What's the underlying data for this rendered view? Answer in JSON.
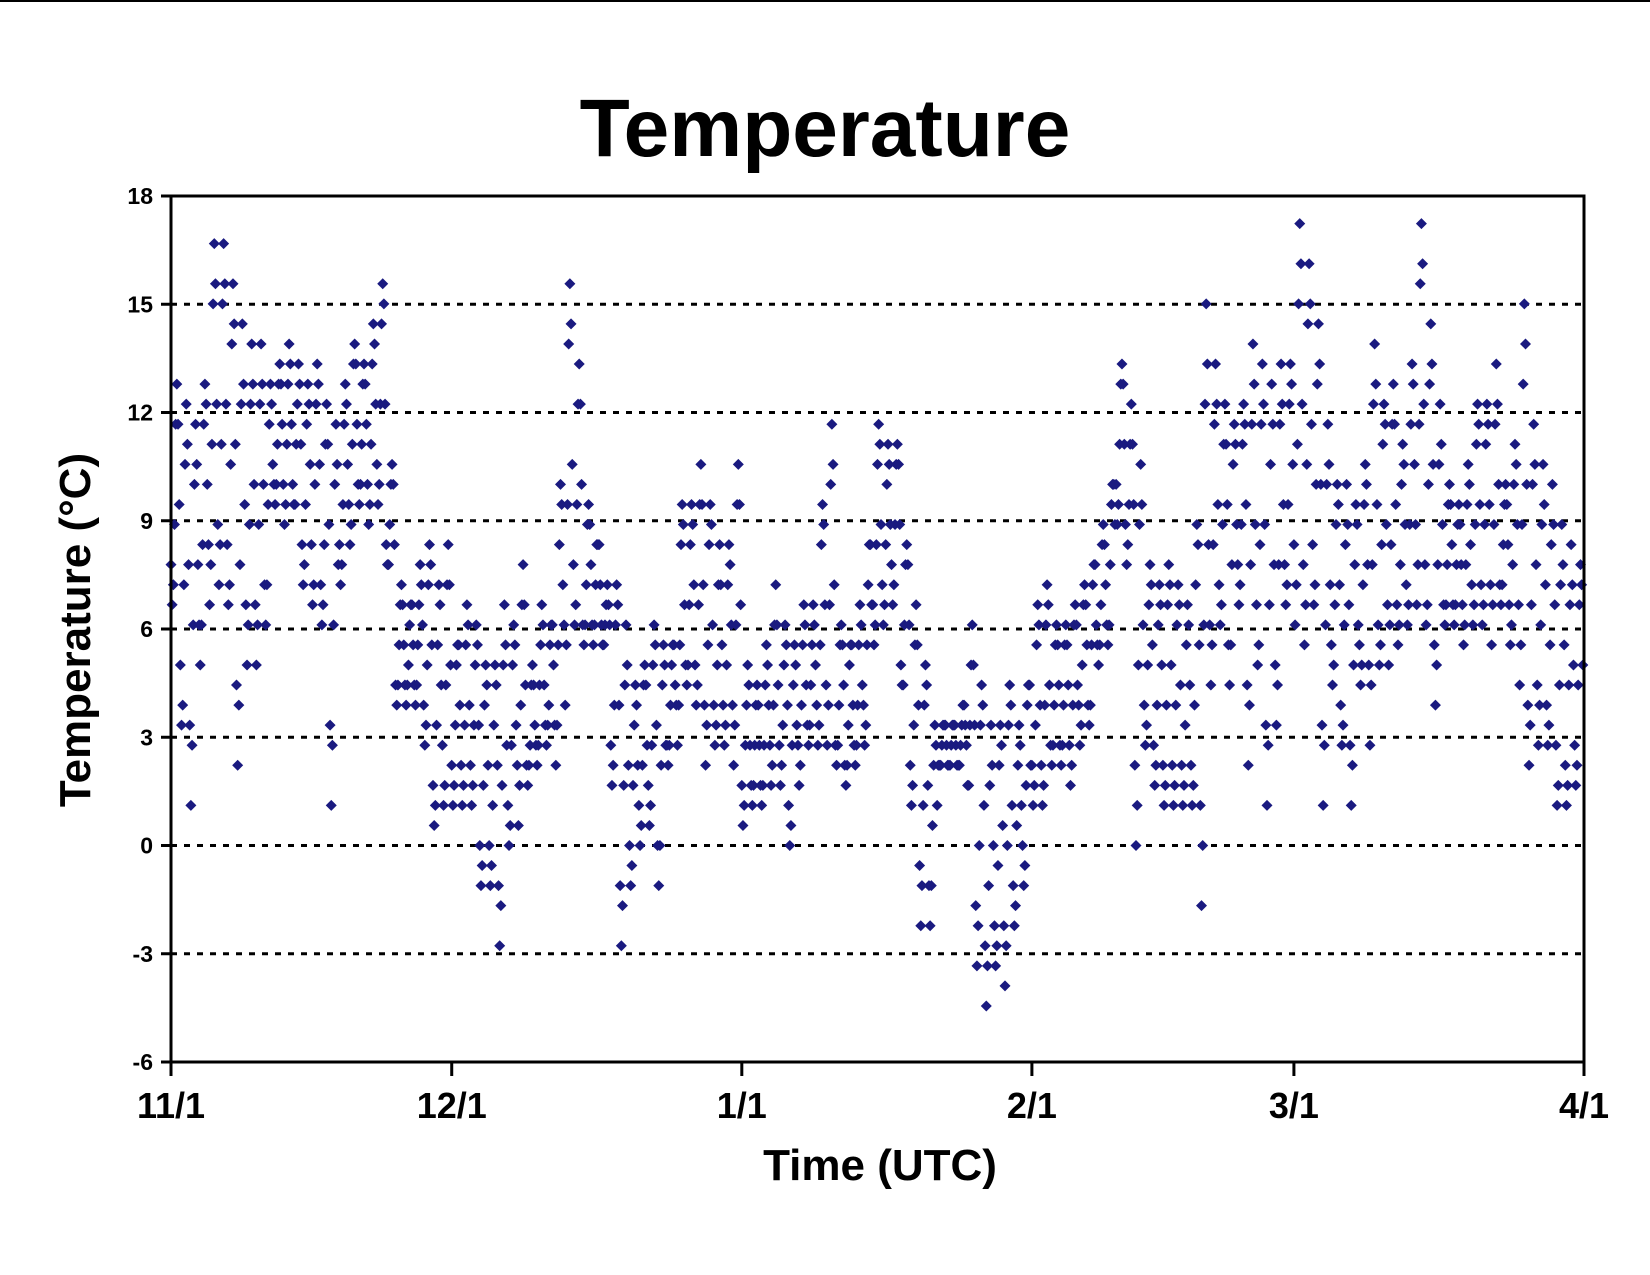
{
  "chart_data": {
    "type": "scatter",
    "title": "Temperature",
    "xlabel": "Time (UTC)",
    "ylabel": "Temperature (°C)",
    "x_ticks": [
      "11/1",
      "12/1",
      "1/1",
      "2/1",
      "3/1",
      "4/1"
    ],
    "x_tick_days": [
      0,
      30,
      61,
      92,
      120,
      151
    ],
    "y_ticks": [
      "18",
      "15",
      "12",
      "9",
      "6",
      "3",
      "0",
      "-3",
      "-6"
    ],
    "ylim": [
      -6,
      18
    ],
    "xlim": [
      "11/1",
      "4/1"
    ],
    "grid": "horizontal dotted",
    "marker": "diamond",
    "color": "#1a1a80",
    "observation_interval_hours": 3,
    "series": [
      {
        "description": "3-hourly air temperature observations, approximate daily range (date, min °C, max °C)",
        "daily_range": [
          [
            "11/1",
            6.7,
            12.8
          ],
          [
            "11/2",
            3.3,
            12.2
          ],
          [
            "11/3",
            1.1,
            11.7
          ],
          [
            "11/4",
            5.0,
            12.2
          ],
          [
            "11/5",
            6.7,
            16.7
          ],
          [
            "11/6",
            7.2,
            16.7
          ],
          [
            "11/7",
            6.7,
            16.1
          ],
          [
            "11/8",
            2.2,
            14.4
          ],
          [
            "11/9",
            5.0,
            13.9
          ],
          [
            "11/10",
            5.0,
            13.9
          ],
          [
            "11/11",
            6.1,
            12.8
          ],
          [
            "11/12",
            9.4,
            13.3
          ],
          [
            "11/13",
            8.9,
            13.9
          ],
          [
            "11/14",
            9.4,
            13.3
          ],
          [
            "11/15",
            7.2,
            12.8
          ],
          [
            "11/16",
            6.7,
            13.9
          ],
          [
            "11/17",
            6.1,
            12.2
          ],
          [
            "11/18",
            1.1,
            11.7
          ],
          [
            "11/19",
            7.2,
            12.2
          ],
          [
            "11/20",
            8.3,
            14.4
          ],
          [
            "11/21",
            9.4,
            13.3
          ],
          [
            "11/22",
            8.9,
            13.9
          ],
          [
            "11/23",
            9.4,
            16.7
          ],
          [
            "11/24",
            7.8,
            11.1
          ],
          [
            "11/25",
            3.9,
            7.2
          ],
          [
            "11/26",
            3.9,
            6.7
          ],
          [
            "11/27",
            3.9,
            7.2
          ],
          [
            "11/28",
            2.8,
            8.9
          ],
          [
            "11/29",
            0.6,
            6.7
          ],
          [
            "11/30",
            1.1,
            8.9
          ],
          [
            "12/1",
            1.1,
            5.6
          ],
          [
            "12/2",
            1.1,
            6.7
          ],
          [
            "12/3",
            1.1,
            6.1
          ],
          [
            "12/4",
            -1.1,
            5.0
          ],
          [
            "12/5",
            -1.1,
            4.4
          ],
          [
            "12/6",
            -2.8,
            6.7
          ],
          [
            "12/7",
            0.0,
            5.6
          ],
          [
            "12/8",
            0.6,
            8.3
          ],
          [
            "12/9",
            1.7,
            4.4
          ],
          [
            "12/10",
            2.2,
            6.7
          ],
          [
            "12/11",
            2.8,
            5.6
          ],
          [
            "12/12",
            2.2,
            8.9
          ],
          [
            "12/13",
            3.9,
            16.1
          ],
          [
            "12/14",
            6.1,
            14.4
          ],
          [
            "12/15",
            5.6,
            9.4
          ],
          [
            "12/16",
            5.6,
            8.9
          ],
          [
            "12/17",
            5.6,
            7.2
          ],
          [
            "12/18",
            1.7,
            7.2
          ],
          [
            "12/19",
            -2.8,
            6.7
          ],
          [
            "12/20",
            -1.1,
            4.4
          ],
          [
            "12/21",
            0.0,
            5.0
          ],
          [
            "12/22",
            0.6,
            6.1
          ],
          [
            "12/23",
            -1.1,
            5.6
          ],
          [
            "12/24",
            2.2,
            5.0
          ],
          [
            "12/25",
            2.8,
            9.4
          ],
          [
            "12/26",
            4.4,
            8.9
          ],
          [
            "12/27",
            3.9,
            10.6
          ],
          [
            "12/28",
            2.2,
            10.0
          ],
          [
            "12/29",
            2.8,
            8.3
          ],
          [
            "12/30",
            2.8,
            7.2
          ],
          [
            "12/31",
            2.2,
            12.2
          ],
          [
            "1/1",
            0.6,
            5.0
          ],
          [
            "1/2",
            1.1,
            4.4
          ],
          [
            "1/3",
            1.1,
            5.0
          ],
          [
            "1/4",
            1.7,
            7.2
          ],
          [
            "1/5",
            1.7,
            6.1
          ],
          [
            "1/6",
            0.0,
            5.6
          ],
          [
            "1/7",
            1.7,
            6.7
          ],
          [
            "1/8",
            2.8,
            6.1
          ],
          [
            "1/9",
            2.8,
            8.9
          ],
          [
            "1/10",
            2.8,
            12.8
          ],
          [
            "1/11",
            2.2,
            6.1
          ],
          [
            "1/12",
            1.7,
            5.6
          ],
          [
            "1/13",
            2.2,
            6.1
          ],
          [
            "1/14",
            2.8,
            7.8
          ],
          [
            "1/15",
            5.6,
            11.7
          ],
          [
            "1/16",
            6.1,
            11.1
          ],
          [
            "1/17",
            6.7,
            11.7
          ],
          [
            "1/18",
            4.4,
            8.9
          ],
          [
            "1/19",
            1.1,
            6.7
          ],
          [
            "1/20",
            -2.2,
            5.6
          ],
          [
            "1/21",
            -2.2,
            3.3
          ],
          [
            "1/22",
            2.2,
            3.3
          ],
          [
            "1/23",
            2.2,
            3.3
          ],
          [
            "1/24",
            2.2,
            3.3
          ],
          [
            "1/25",
            1.7,
            6.1
          ],
          [
            "1/26",
            -3.3,
            5.0
          ],
          [
            "1/27",
            -4.4,
            3.3
          ],
          [
            "1/28",
            -3.3,
            3.3
          ],
          [
            "1/29",
            -3.9,
            5.0
          ],
          [
            "1/30",
            -2.2,
            3.3
          ],
          [
            "1/31",
            -1.1,
            4.4
          ],
          [
            "2/1",
            1.1,
            6.1
          ],
          [
            "2/2",
            1.1,
            7.8
          ],
          [
            "2/3",
            2.2,
            6.1
          ],
          [
            "2/4",
            2.2,
            6.1
          ],
          [
            "2/5",
            1.7,
            6.7
          ],
          [
            "2/6",
            2.8,
            7.2
          ],
          [
            "2/7",
            3.3,
            7.8
          ],
          [
            "2/8",
            5.0,
            8.9
          ],
          [
            "2/9",
            5.6,
            9.4
          ],
          [
            "2/10",
            8.9,
            13.9
          ],
          [
            "2/11",
            8.3,
            12.2
          ],
          [
            "2/12",
            0.0,
            11.1
          ],
          [
            "2/13",
            2.8,
            7.8
          ],
          [
            "2/14",
            1.7,
            7.2
          ],
          [
            "2/15",
            1.1,
            7.8
          ],
          [
            "2/16",
            1.1,
            7.2
          ],
          [
            "2/17",
            1.1,
            6.7
          ],
          [
            "2/18",
            1.1,
            7.2
          ],
          [
            "2/19",
            -2.2,
            15.6
          ],
          [
            "2/20",
            4.4,
            13.3
          ],
          [
            "2/21",
            6.1,
            12.2
          ],
          [
            "2/22",
            4.4,
            11.7
          ],
          [
            "2/23",
            6.7,
            12.2
          ],
          [
            "2/24",
            2.2,
            13.9
          ],
          [
            "2/25",
            5.0,
            13.3
          ],
          [
            "2/26",
            1.1,
            12.8
          ],
          [
            "2/27",
            3.3,
            13.3
          ],
          [
            "2/28",
            6.7,
            12.8
          ],
          [
            "3/1",
            6.1,
            17.2
          ],
          [
            "3/2",
            5.6,
            16.7
          ],
          [
            "3/3",
            6.7,
            15.0
          ],
          [
            "3/4",
            1.1,
            12.2
          ],
          [
            "3/5",
            4.4,
            10.0
          ],
          [
            "3/6",
            2.8,
            10.0
          ],
          [
            "3/7",
            1.1,
            9.4
          ],
          [
            "3/8",
            4.4,
            10.0
          ],
          [
            "3/9",
            2.8,
            14.4
          ],
          [
            "3/10",
            5.0,
            12.2
          ],
          [
            "3/11",
            5.0,
            13.3
          ],
          [
            "3/12",
            5.6,
            10.6
          ],
          [
            "3/13",
            6.1,
            12.2
          ],
          [
            "3/14",
            6.7,
            17.8
          ],
          [
            "3/15",
            6.1,
            15.0
          ],
          [
            "3/16",
            3.9,
            12.8
          ],
          [
            "3/17",
            6.1,
            10.0
          ],
          [
            "3/18",
            6.1,
            9.4
          ],
          [
            "3/19",
            5.6,
            10.0
          ],
          [
            "3/20",
            6.1,
            12.2
          ],
          [
            "3/21",
            6.1,
            11.7
          ],
          [
            "3/22",
            5.6,
            13.9
          ],
          [
            "3/23",
            6.7,
            10.0
          ],
          [
            "3/24",
            5.6,
            10.0
          ],
          [
            "3/25",
            4.4,
            15.6
          ],
          [
            "3/26",
            2.2,
            12.2
          ],
          [
            "3/27",
            2.8,
            10.6
          ],
          [
            "3/28",
            2.8,
            10.0
          ],
          [
            "3/29",
            1.1,
            8.9
          ],
          [
            "3/30",
            1.1,
            8.3
          ],
          [
            "3/31",
            1.7,
            7.8
          ],
          [
            "4/1",
            1.1,
            7.2
          ]
        ]
      }
    ]
  }
}
